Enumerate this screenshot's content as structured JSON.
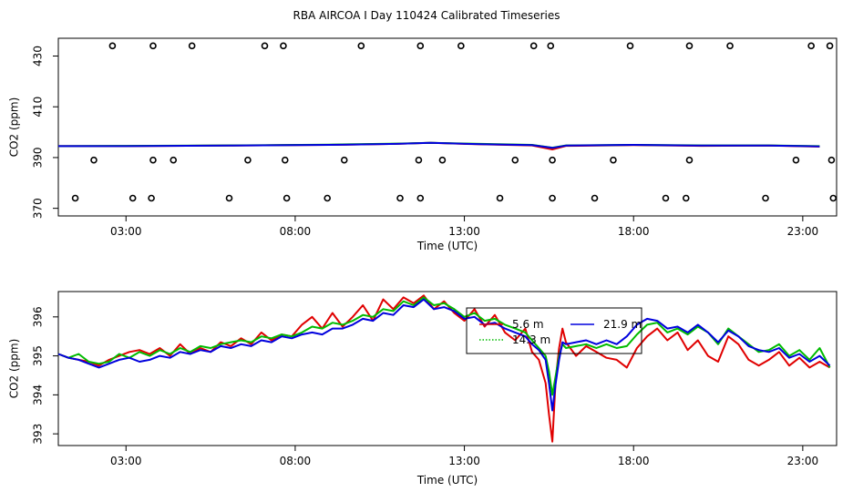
{
  "title": "RBA AIRCOA I  Day 110424  Calibrated Timeseries",
  "colors": {
    "axis": "#000000",
    "red": "#e00000",
    "green": "#00bb00",
    "blue": "#0000dd"
  },
  "chart_data": [
    {
      "type": "line",
      "xlabel": "Time (UTC)",
      "ylabel": "CO2 (ppm)",
      "xlim": [
        1.0,
        24.0
      ],
      "ylim": [
        367,
        437
      ],
      "x_ticks": [
        {
          "value": 3,
          "label": "03:00"
        },
        {
          "value": 8,
          "label": "08:00"
        },
        {
          "value": 13,
          "label": "13:00"
        },
        {
          "value": 18,
          "label": "18:00"
        },
        {
          "value": 23,
          "label": "23:00"
        }
      ],
      "y_ticks": [
        {
          "value": 370,
          "label": "370"
        },
        {
          "value": 390,
          "label": "390"
        },
        {
          "value": 410,
          "label": "410"
        },
        {
          "value": 430,
          "label": "430"
        }
      ],
      "series": [
        {
          "color": "red",
          "x": [
            1.0,
            3.0,
            6.0,
            9.0,
            11.0,
            12.0,
            13.5,
            15.0,
            15.6,
            16.0,
            18.0,
            20.0,
            22.0,
            23.5
          ],
          "y": [
            394.5,
            394.5,
            394.7,
            395.0,
            395.4,
            395.8,
            395.2,
            394.8,
            393.2,
            394.6,
            394.9,
            394.6,
            394.7,
            394.3
          ]
        },
        {
          "color": "green",
          "x": [
            1.0,
            3.0,
            6.0,
            9.0,
            11.0,
            12.0,
            13.5,
            15.0,
            15.6,
            16.0,
            18.0,
            20.0,
            22.0,
            23.5
          ],
          "y": [
            394.5,
            394.6,
            394.8,
            395.1,
            395.5,
            395.8,
            395.4,
            395.0,
            393.9,
            394.8,
            395.0,
            394.8,
            394.8,
            394.5
          ]
        },
        {
          "color": "blue",
          "x": [
            1.0,
            3.0,
            6.0,
            9.0,
            11.0,
            12.0,
            13.5,
            15.0,
            15.6,
            16.0,
            18.0,
            20.0,
            22.0,
            23.5
          ],
          "y": [
            394.5,
            394.5,
            394.7,
            395.0,
            395.4,
            395.8,
            395.3,
            394.9,
            393.8,
            394.7,
            395.0,
            394.7,
            394.7,
            394.4
          ]
        }
      ],
      "markers": {
        "shape": "circle",
        "x": [
          2.6,
          3.8,
          4.95,
          7.1,
          7.65,
          9.95,
          11.7,
          12.9,
          15.05,
          15.55,
          17.9,
          19.65,
          20.85,
          23.25,
          23.8,
          2.05,
          3.8,
          4.4,
          6.6,
          7.7,
          9.45,
          11.65,
          12.35,
          14.5,
          15.6,
          17.4,
          19.65,
          22.8,
          23.85,
          1.5,
          3.2,
          3.75,
          6.05,
          7.75,
          8.95,
          11.1,
          11.7,
          14.05,
          15.6,
          16.85,
          18.95,
          19.55,
          21.9,
          23.9
        ],
        "y": [
          434,
          434,
          434,
          434,
          434,
          434,
          434,
          434,
          434,
          434,
          434,
          434,
          434,
          434,
          434,
          389,
          389,
          389,
          389,
          389,
          389,
          389,
          389,
          389,
          389,
          389,
          389,
          389,
          389,
          374,
          374,
          374,
          374,
          374,
          374,
          374,
          374,
          374,
          374,
          374,
          374,
          374,
          374,
          374
        ]
      }
    },
    {
      "type": "line",
      "xlabel": "Time (UTC)",
      "ylabel": "CO2 (ppm)",
      "xlim": [
        1.0,
        24.0
      ],
      "ylim": [
        392.7,
        396.65
      ],
      "x_ticks": [
        {
          "value": 3,
          "label": "03:00"
        },
        {
          "value": 8,
          "label": "08:00"
        },
        {
          "value": 13,
          "label": "13:00"
        },
        {
          "value": 18,
          "label": "18:00"
        },
        {
          "value": 23,
          "label": "23:00"
        }
      ],
      "y_ticks": [
        {
          "value": 393,
          "label": "393"
        },
        {
          "value": 394,
          "label": "394"
        },
        {
          "value": 395,
          "label": "395"
        },
        {
          "value": 396,
          "label": "396"
        }
      ],
      "legend": {
        "placement": "top-center",
        "entries": [
          {
            "label": "5.6 m",
            "color": "red",
            "dash": "solid"
          },
          {
            "label": "21.9 m",
            "color": "blue",
            "dash": "solid"
          },
          {
            "label": "14.3 m",
            "color": "green",
            "dash": "dotted"
          }
        ]
      },
      "series": [
        {
          "name": "5.6 m",
          "color": "red",
          "x": [
            1.0,
            1.3,
            1.6,
            1.9,
            2.2,
            2.5,
            2.8,
            3.1,
            3.4,
            3.7,
            4.0,
            4.3,
            4.6,
            4.9,
            5.2,
            5.5,
            5.8,
            6.1,
            6.4,
            6.7,
            7.0,
            7.3,
            7.6,
            7.9,
            8.2,
            8.5,
            8.8,
            9.1,
            9.4,
            9.7,
            10.0,
            10.3,
            10.6,
            10.9,
            11.2,
            11.5,
            11.8,
            12.1,
            12.4,
            12.7,
            13.0,
            13.3,
            13.6,
            13.9,
            14.2,
            14.5,
            14.8,
            15.0,
            15.2,
            15.4,
            15.5,
            15.6,
            15.7,
            15.8,
            15.9,
            16.0,
            16.3,
            16.6,
            16.9,
            17.2,
            17.5,
            17.8,
            18.1,
            18.4,
            18.7,
            19.0,
            19.3,
            19.6,
            19.9,
            20.2,
            20.5,
            20.8,
            21.1,
            21.4,
            21.7,
            22.0,
            22.3,
            22.6,
            22.9,
            23.2,
            23.5,
            23.8
          ],
          "y": [
            395.05,
            394.95,
            394.9,
            394.85,
            394.75,
            394.9,
            395.0,
            395.1,
            395.15,
            395.05,
            395.2,
            395.0,
            395.3,
            395.05,
            395.2,
            395.1,
            395.35,
            395.25,
            395.45,
            395.3,
            395.6,
            395.4,
            395.55,
            395.5,
            395.8,
            396.0,
            395.7,
            396.1,
            395.75,
            396.0,
            396.3,
            395.9,
            396.45,
            396.2,
            396.5,
            396.35,
            396.55,
            396.2,
            396.4,
            396.1,
            395.9,
            396.2,
            395.75,
            396.05,
            395.6,
            395.4,
            395.7,
            395.1,
            394.9,
            394.3,
            393.5,
            392.8,
            394.4,
            395.2,
            395.7,
            395.35,
            395.0,
            395.25,
            395.1,
            394.95,
            394.9,
            394.7,
            395.2,
            395.5,
            395.7,
            395.4,
            395.6,
            395.15,
            395.4,
            395.0,
            394.85,
            395.5,
            395.3,
            394.9,
            394.75,
            394.9,
            395.1,
            394.75,
            394.95,
            394.7,
            394.85,
            394.7
          ]
        },
        {
          "name": "14.3 m",
          "color": "green",
          "x": [
            1.0,
            1.3,
            1.6,
            1.9,
            2.2,
            2.5,
            2.8,
            3.1,
            3.4,
            3.7,
            4.0,
            4.3,
            4.6,
            4.9,
            5.2,
            5.5,
            5.8,
            6.1,
            6.4,
            6.7,
            7.0,
            7.3,
            7.6,
            7.9,
            8.2,
            8.5,
            8.8,
            9.1,
            9.4,
            9.7,
            10.0,
            10.3,
            10.6,
            10.9,
            11.2,
            11.5,
            11.8,
            12.1,
            12.4,
            12.7,
            13.0,
            13.3,
            13.6,
            13.9,
            14.2,
            14.5,
            14.8,
            15.0,
            15.2,
            15.4,
            15.5,
            15.6,
            15.7,
            15.8,
            15.9,
            16.0,
            16.3,
            16.6,
            16.9,
            17.2,
            17.5,
            17.8,
            18.1,
            18.4,
            18.7,
            19.0,
            19.3,
            19.6,
            19.9,
            20.2,
            20.5,
            20.8,
            21.1,
            21.4,
            21.7,
            22.0,
            22.3,
            22.6,
            22.9,
            23.2,
            23.5,
            23.8
          ],
          "y": [
            395.05,
            394.95,
            395.05,
            394.85,
            394.8,
            394.85,
            395.05,
            394.95,
            395.1,
            395.0,
            395.15,
            395.05,
            395.2,
            395.1,
            395.25,
            395.2,
            395.3,
            395.35,
            395.4,
            395.35,
            395.5,
            395.45,
            395.55,
            395.5,
            395.6,
            395.75,
            395.7,
            395.85,
            395.8,
            395.9,
            396.05,
            396.0,
            396.2,
            396.15,
            396.4,
            396.3,
            396.5,
            396.3,
            396.35,
            396.2,
            396.0,
            396.1,
            395.9,
            395.95,
            395.8,
            395.7,
            395.6,
            395.4,
            395.2,
            395.0,
            394.6,
            394.0,
            394.5,
            395.0,
            395.3,
            395.2,
            395.25,
            395.3,
            395.2,
            395.3,
            395.2,
            395.25,
            395.55,
            395.8,
            395.85,
            395.6,
            395.7,
            395.55,
            395.75,
            395.6,
            395.3,
            395.7,
            395.5,
            395.3,
            395.1,
            395.15,
            395.3,
            395.0,
            395.15,
            394.9,
            395.2,
            394.7
          ]
        },
        {
          "name": "21.9 m",
          "color": "blue",
          "x": [
            1.0,
            1.3,
            1.6,
            1.9,
            2.2,
            2.5,
            2.8,
            3.1,
            3.4,
            3.7,
            4.0,
            4.3,
            4.6,
            4.9,
            5.2,
            5.5,
            5.8,
            6.1,
            6.4,
            6.7,
            7.0,
            7.3,
            7.6,
            7.9,
            8.2,
            8.5,
            8.8,
            9.1,
            9.4,
            9.7,
            10.0,
            10.3,
            10.6,
            10.9,
            11.2,
            11.5,
            11.8,
            12.1,
            12.4,
            12.7,
            13.0,
            13.3,
            13.6,
            13.9,
            14.2,
            14.5,
            14.8,
            15.0,
            15.2,
            15.4,
            15.5,
            15.6,
            15.7,
            15.8,
            15.9,
            16.0,
            16.3,
            16.6,
            16.9,
            17.2,
            17.5,
            17.8,
            18.1,
            18.4,
            18.7,
            19.0,
            19.3,
            19.6,
            19.9,
            20.2,
            20.5,
            20.8,
            21.1,
            21.4,
            21.7,
            22.0,
            22.3,
            22.6,
            22.9,
            23.2,
            23.5,
            23.8
          ],
          "y": [
            395.05,
            394.95,
            394.9,
            394.8,
            394.7,
            394.8,
            394.9,
            394.95,
            394.85,
            394.9,
            395.0,
            394.95,
            395.1,
            395.05,
            395.15,
            395.1,
            395.25,
            395.2,
            395.3,
            395.25,
            395.4,
            395.35,
            395.5,
            395.45,
            395.55,
            395.6,
            395.55,
            395.7,
            395.7,
            395.8,
            395.95,
            395.9,
            396.1,
            396.05,
            396.3,
            396.25,
            396.45,
            396.2,
            396.25,
            396.15,
            395.95,
            396.0,
            395.8,
            395.85,
            395.7,
            395.6,
            395.5,
            395.3,
            395.15,
            394.9,
            394.3,
            393.6,
            394.3,
            394.9,
            395.35,
            395.3,
            395.35,
            395.4,
            395.3,
            395.4,
            395.3,
            395.5,
            395.8,
            395.95,
            395.9,
            395.7,
            395.75,
            395.6,
            395.8,
            395.6,
            395.35,
            395.65,
            395.5,
            395.25,
            395.15,
            395.1,
            395.2,
            394.95,
            395.05,
            394.85,
            395.0,
            394.75
          ]
        }
      ]
    }
  ]
}
